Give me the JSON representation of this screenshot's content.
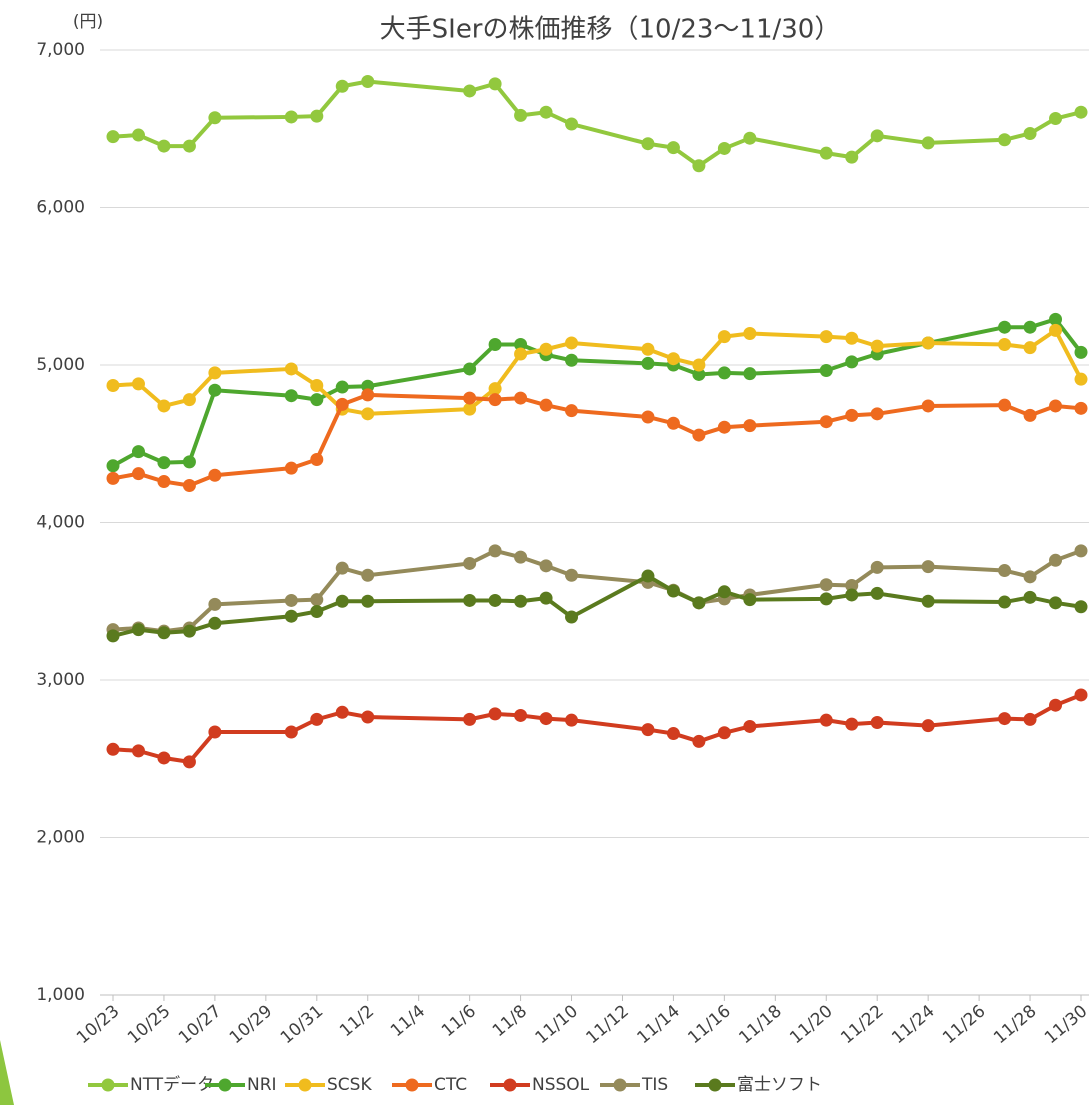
{
  "chart_data": {
    "type": "line",
    "title": "大手SIerの株価推移（10/23～11/30）",
    "y_axis_label": "(円)",
    "x": [
      "10/23",
      "10/24",
      "10/25",
      "10/26",
      "10/27",
      "10/30",
      "10/31",
      "11/1",
      "11/2",
      "11/6",
      "11/7",
      "11/8",
      "11/9",
      "11/10",
      "11/13",
      "11/14",
      "11/15",
      "11/16",
      "11/17",
      "11/20",
      "11/21",
      "11/22",
      "11/24",
      "11/27",
      "11/28",
      "11/29",
      "11/30"
    ],
    "xlim": [
      "10/23",
      "11/30"
    ],
    "xticks": [
      "10/23",
      "10/25",
      "10/27",
      "10/29",
      "10/31",
      "11/2",
      "11/4",
      "11/6",
      "11/8",
      "11/10",
      "11/12",
      "11/14",
      "11/16",
      "11/18",
      "11/20",
      "11/22",
      "11/24",
      "11/26",
      "11/28",
      "11/30"
    ],
    "ylim": [
      1000,
      7000
    ],
    "yticks": [
      {
        "value": 1000,
        "label": "1,000"
      },
      {
        "value": 2000,
        "label": "2,000"
      },
      {
        "value": 3000,
        "label": "3,000"
      },
      {
        "value": 4000,
        "label": "4,000"
      },
      {
        "value": 5000,
        "label": "5,000"
      },
      {
        "value": 6000,
        "label": "6,000"
      },
      {
        "value": 7000,
        "label": "7,000"
      }
    ],
    "grid": true,
    "legend": "bottom",
    "series": [
      {
        "name": "NTTデータ",
        "color": "#92c83e",
        "values": [
          6450,
          6460,
          6390,
          6390,
          6570,
          6575,
          6580,
          6770,
          6800,
          6740,
          6785,
          6585,
          6605,
          6530,
          6405,
          6380,
          6265,
          6375,
          6440,
          6345,
          6320,
          6455,
          6410,
          6430,
          6470,
          6565,
          6605
        ]
      },
      {
        "name": "NRI",
        "color": "#4ea72e",
        "values": [
          4360,
          4450,
          4380,
          4385,
          4840,
          4805,
          4780,
          4860,
          4865,
          4975,
          5130,
          5130,
          5065,
          5030,
          5010,
          5000,
          4940,
          4950,
          4945,
          4965,
          5020,
          5070,
          5140,
          5240,
          5240,
          5290,
          5080
        ]
      },
      {
        "name": "SCSK",
        "color": "#f0bc1e",
        "values": [
          4870,
          4880,
          4740,
          4780,
          4950,
          4975,
          4870,
          4720,
          4690,
          4720,
          4850,
          5070,
          5100,
          5140,
          5100,
          5040,
          5000,
          5180,
          5200,
          5180,
          5170,
          5120,
          5140,
          5130,
          5110,
          5220,
          4910
        ]
      },
      {
        "name": "CTC",
        "color": "#ee6a1f",
        "values": [
          4280,
          4310,
          4260,
          4235,
          4300,
          4345,
          4400,
          4750,
          4810,
          4790,
          4780,
          4790,
          4745,
          4710,
          4670,
          4630,
          4555,
          4605,
          4615,
          4640,
          4680,
          4690,
          4740,
          4745,
          4680,
          4740,
          4725
        ]
      },
      {
        "name": "NSSOL",
        "color": "#d13c1f",
        "values": [
          2560,
          2550,
          2505,
          2480,
          2670,
          2670,
          2750,
          2795,
          2765,
          2750,
          2785,
          2775,
          2755,
          2745,
          2685,
          2660,
          2610,
          2665,
          2705,
          2745,
          2720,
          2730,
          2710,
          2755,
          2750,
          2840,
          2905
        ]
      },
      {
        "name": "TIS",
        "color": "#948a5a",
        "values": [
          3320,
          3330,
          3310,
          3330,
          3480,
          3505,
          3510,
          3710,
          3665,
          3740,
          3820,
          3780,
          3725,
          3665,
          3620,
          3570,
          3490,
          3515,
          3540,
          3605,
          3600,
          3715,
          3720,
          3695,
          3655,
          3760,
          3820
        ]
      },
      {
        "name": "富士ソフト",
        "color": "#5a7a1e",
        "values": [
          3280,
          3320,
          3300,
          3310,
          3360,
          3405,
          3435,
          3500,
          3500,
          3505,
          3505,
          3500,
          3520,
          3400,
          3660,
          3565,
          3490,
          3560,
          3510,
          3515,
          3540,
          3550,
          3500,
          3495,
          3525,
          3490,
          3465
        ]
      }
    ]
  }
}
